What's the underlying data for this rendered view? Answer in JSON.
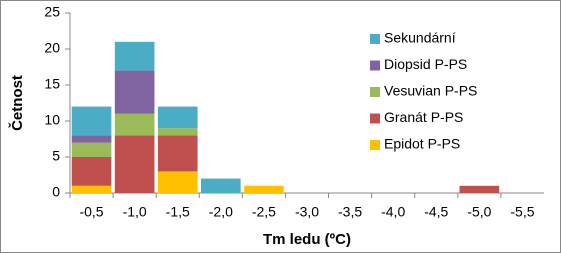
{
  "chart_data": {
    "type": "stacked-bar",
    "xlabel": "Tm ledu (ºC)",
    "ylabel": "Četnost",
    "categories": [
      "-0,5",
      "-1,0",
      "-1,5",
      "-2,0",
      "-2,5",
      "-3,0",
      "-3,5",
      "-4,0",
      "-4,5",
      "-5,0",
      "-5,5"
    ],
    "series": [
      {
        "name": "Epidot P-PS",
        "color": "#ffc000",
        "values": [
          1,
          0,
          3,
          0,
          1,
          0,
          0,
          0,
          0,
          0,
          0
        ]
      },
      {
        "name": "Granát P-PS",
        "color": "#c0504d",
        "values": [
          4,
          8,
          5,
          0,
          0,
          0,
          0,
          0,
          0,
          1,
          0
        ]
      },
      {
        "name": "Vesuvian P-PS",
        "color": "#9bbb59",
        "values": [
          2,
          3,
          1,
          0,
          0,
          0,
          0,
          0,
          0,
          0,
          0
        ]
      },
      {
        "name": "Diopsid P-PS",
        "color": "#8064a2",
        "values": [
          1,
          6,
          0,
          0,
          0,
          0,
          0,
          0,
          0,
          0,
          0
        ]
      },
      {
        "name": "Sekundární",
        "color": "#4bacc6",
        "values": [
          4,
          4,
          3,
          2,
          0,
          0,
          0,
          0,
          0,
          0,
          0
        ]
      }
    ],
    "ylim": [
      0,
      25
    ],
    "yticks": [
      0,
      5,
      10,
      15,
      20,
      25
    ],
    "grid": false,
    "legend": "right"
  }
}
